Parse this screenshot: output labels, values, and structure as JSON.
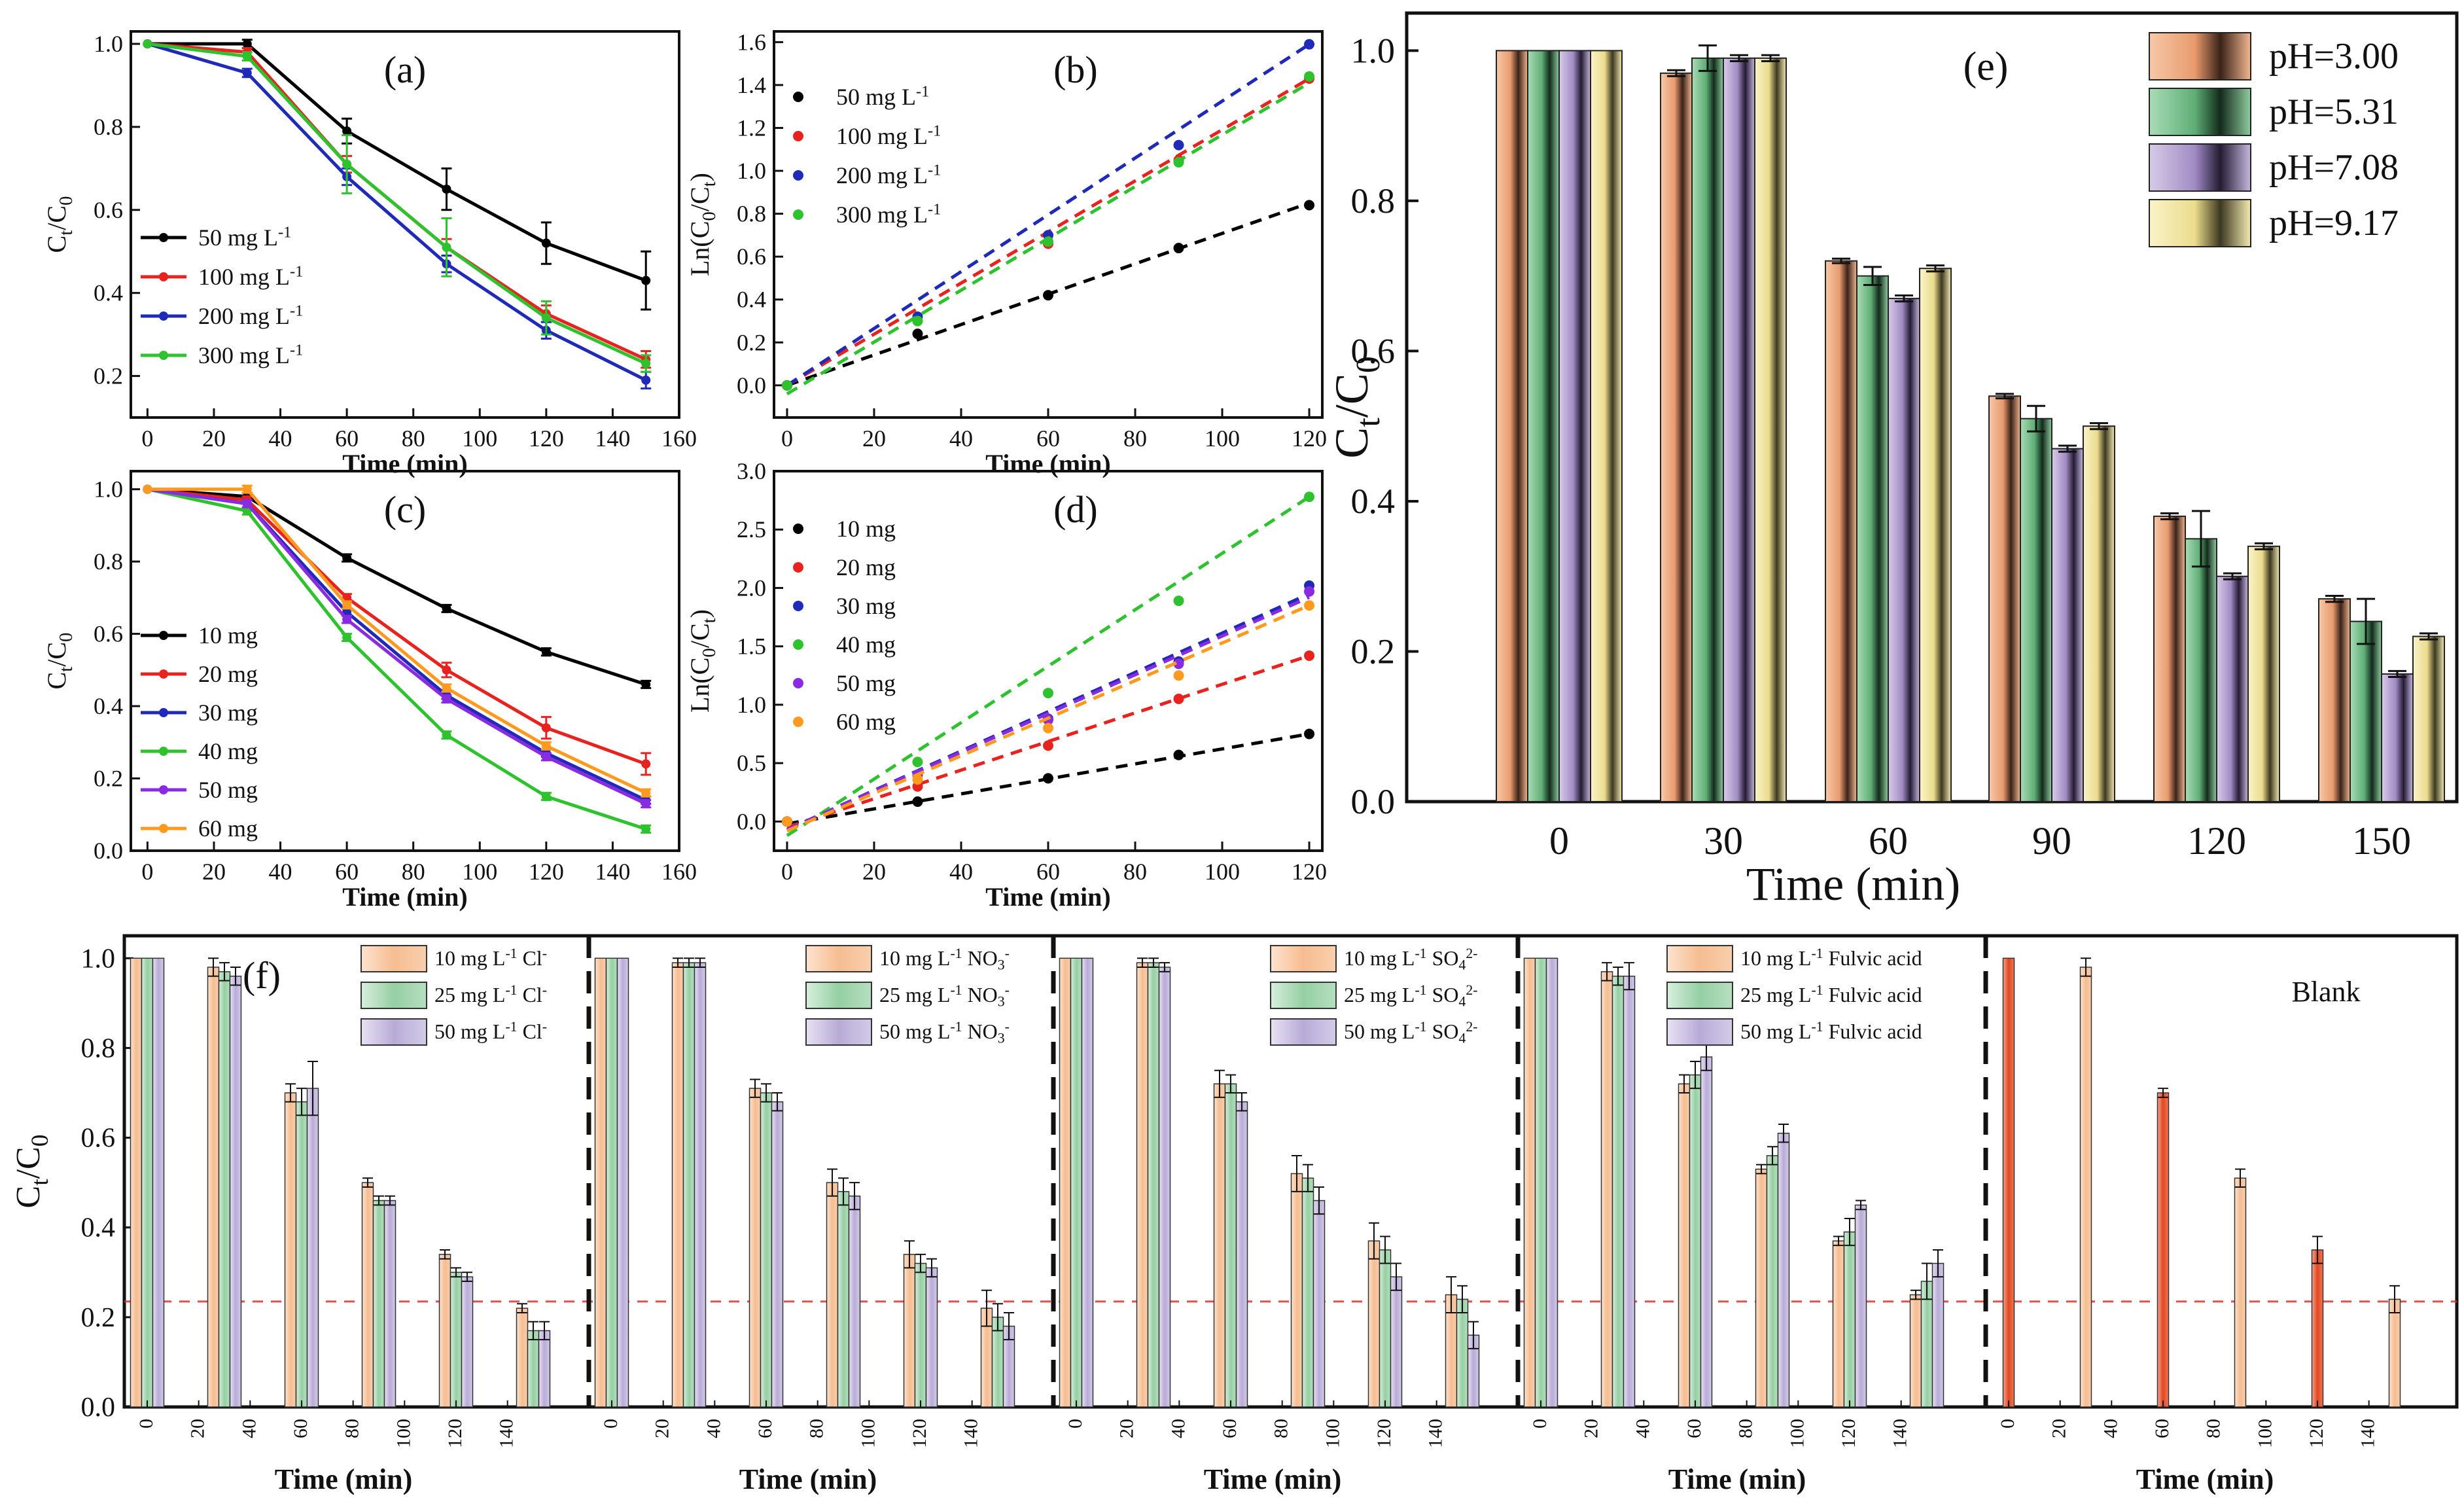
{
  "chart_data": {
    "a": {
      "type": "line",
      "label": "(a)",
      "xlabel": "Time (min)",
      "ylabel": "Ct/C0",
      "xlim": [
        -5,
        160
      ],
      "ylim": [
        0.1,
        1.03
      ],
      "xticks": [
        0,
        20,
        40,
        60,
        80,
        100,
        120,
        140,
        160
      ],
      "yticks": [
        0.2,
        0.4,
        0.6,
        0.8,
        1.0
      ],
      "legend_position": "bottom-left",
      "x": [
        0,
        30,
        60,
        90,
        120,
        150
      ],
      "series": [
        {
          "name": "50 mg L-1",
          "color": "#000000",
          "values": [
            1.0,
            1.0,
            0.79,
            0.65,
            0.52,
            0.43
          ],
          "err": [
            0,
            0.01,
            0.03,
            0.05,
            0.05,
            0.07
          ]
        },
        {
          "name": "100 mg L-1",
          "color": "#e8231f",
          "values": [
            1.0,
            0.98,
            0.71,
            0.51,
            0.35,
            0.24
          ],
          "err": [
            0,
            0.01,
            0.02,
            0.02,
            0.02,
            0.02
          ]
        },
        {
          "name": "200 mg L-1",
          "color": "#1f2ab8",
          "values": [
            1.0,
            0.93,
            0.68,
            0.47,
            0.31,
            0.19
          ],
          "err": [
            0,
            0.01,
            0.02,
            0.02,
            0.02,
            0.02
          ]
        },
        {
          "name": "300 mg L-1",
          "color": "#2ec22e",
          "values": [
            1.0,
            0.97,
            0.71,
            0.51,
            0.34,
            0.23
          ],
          "err": [
            0,
            0.01,
            0.07,
            0.07,
            0.04,
            0.02
          ]
        }
      ]
    },
    "b": {
      "type": "scatter",
      "label": "(b)",
      "xlabel": "Time (min)",
      "ylabel": "Ln(C0/Ct)",
      "xlim": [
        -3,
        123
      ],
      "ylim": [
        -0.15,
        1.65
      ],
      "xticks": [
        0,
        20,
        40,
        60,
        80,
        100,
        120
      ],
      "yticks": [
        0.0,
        0.2,
        0.4,
        0.6,
        0.8,
        1.0,
        1.2,
        1.4,
        1.6
      ],
      "legend_position": "top-left",
      "x": [
        0,
        30,
        60,
        90,
        120
      ],
      "series": [
        {
          "name": "50 mg L-1",
          "color": "#000000",
          "values": [
            0.0,
            0.24,
            0.42,
            0.64,
            0.84
          ],
          "fit": [
            0.0,
            0.85
          ]
        },
        {
          "name": "100 mg L-1",
          "color": "#e8231f",
          "values": [
            0.0,
            0.3,
            0.66,
            1.05,
            1.43
          ],
          "fit": [
            0.0,
            1.43
          ]
        },
        {
          "name": "200 mg L-1",
          "color": "#1f2ab8",
          "values": [
            0.0,
            0.32,
            0.7,
            1.12,
            1.59
          ],
          "fit": [
            0.0,
            1.59
          ]
        },
        {
          "name": "300 mg L-1",
          "color": "#2ec22e",
          "values": [
            0.0,
            0.3,
            0.67,
            1.04,
            1.44
          ],
          "fit": [
            -0.04,
            1.41
          ]
        }
      ]
    },
    "c": {
      "type": "line",
      "label": "(c)",
      "xlabel": "Time (min)",
      "ylabel": "Ct/C0",
      "xlim": [
        -5,
        160
      ],
      "ylim": [
        0.0,
        1.05
      ],
      "xticks": [
        0,
        20,
        40,
        60,
        80,
        100,
        120,
        140,
        160
      ],
      "yticks": [
        0.0,
        0.2,
        0.4,
        0.6,
        0.8,
        1.0
      ],
      "legend_position": "bottom-left",
      "x": [
        0,
        30,
        60,
        90,
        120,
        150
      ],
      "series": [
        {
          "name": "10 mg",
          "color": "#000000",
          "values": [
            1.0,
            0.98,
            0.81,
            0.67,
            0.55,
            0.46
          ],
          "err": [
            0,
            0.01,
            0.01,
            0.01,
            0.01,
            0.01
          ]
        },
        {
          "name": "20 mg",
          "color": "#e8231f",
          "values": [
            1.0,
            0.97,
            0.7,
            0.5,
            0.34,
            0.24
          ],
          "err": [
            0,
            0.01,
            0.01,
            0.02,
            0.03,
            0.03
          ]
        },
        {
          "name": "30 mg",
          "color": "#1f2ab8",
          "values": [
            1.0,
            0.96,
            0.66,
            0.43,
            0.27,
            0.14
          ],
          "err": [
            0,
            0.01,
            0.01,
            0.01,
            0.01,
            0.01
          ]
        },
        {
          "name": "40 mg",
          "color": "#2ec22e",
          "values": [
            1.0,
            0.94,
            0.59,
            0.32,
            0.15,
            0.06
          ],
          "err": [
            0,
            0.01,
            0.01,
            0.01,
            0.01,
            0.01
          ]
        },
        {
          "name": "50 mg",
          "color": "#8a2be2",
          "values": [
            1.0,
            0.96,
            0.64,
            0.42,
            0.26,
            0.13
          ],
          "err": [
            0,
            0.01,
            0.01,
            0.01,
            0.01,
            0.01
          ]
        },
        {
          "name": "60 mg",
          "color": "#ff9a1f",
          "values": [
            1.0,
            1.0,
            0.68,
            0.45,
            0.29,
            0.16
          ],
          "err": [
            0,
            0.01,
            0.01,
            0.01,
            0.01,
            0.01
          ]
        }
      ]
    },
    "d": {
      "type": "scatter",
      "label": "(d)",
      "xlabel": "Time (min)",
      "ylabel": "Ln(C0/Ct)",
      "xlim": [
        -3,
        123
      ],
      "ylim": [
        -0.25,
        3.0
      ],
      "xticks": [
        0,
        20,
        40,
        60,
        80,
        100,
        120
      ],
      "yticks": [
        0.0,
        0.5,
        1.0,
        1.5,
        2.0,
        2.5,
        3.0
      ],
      "legend_position": "top-left",
      "x": [
        0,
        30,
        60,
        90,
        120
      ],
      "series": [
        {
          "name": "10 mg",
          "color": "#000000",
          "values": [
            0.0,
            0.17,
            0.37,
            0.57,
            0.75
          ],
          "fit": [
            -0.02,
            0.75
          ]
        },
        {
          "name": "20 mg",
          "color": "#e8231f",
          "values": [
            0.0,
            0.3,
            0.65,
            1.05,
            1.42
          ],
          "fit": [
            -0.05,
            1.42
          ]
        },
        {
          "name": "30 mg",
          "color": "#1f2ab8",
          "values": [
            0.0,
            0.4,
            0.88,
            1.37,
            2.02
          ],
          "fit": [
            -0.07,
            1.95
          ]
        },
        {
          "name": "40 mg",
          "color": "#2ec22e",
          "values": [
            0.0,
            0.51,
            1.1,
            1.89,
            2.78
          ],
          "fit": [
            -0.12,
            2.78
          ]
        },
        {
          "name": "50 mg",
          "color": "#8a2be2",
          "values": [
            0.0,
            0.4,
            0.87,
            1.35,
            1.97
          ],
          "fit": [
            -0.07,
            1.92
          ]
        },
        {
          "name": "60 mg",
          "color": "#ff9a1f",
          "values": [
            0.0,
            0.36,
            0.8,
            1.25,
            1.85
          ],
          "fit": [
            -0.08,
            1.85
          ]
        }
      ]
    },
    "e": {
      "type": "bar",
      "label": "(e)",
      "xlabel": "Time (min)",
      "ylabel": "Ct/C0",
      "ylim": [
        0.0,
        1.05
      ],
      "yticks": [
        0.0,
        0.2,
        0.4,
        0.6,
        0.8,
        1.0
      ],
      "legend_position": "top-right",
      "categories": [
        "0",
        "30",
        "60",
        "90",
        "120",
        "150"
      ],
      "series": [
        {
          "name": "pH=3.00",
          "color": "#f2a97f",
          "values": [
            1.0,
            0.97,
            0.72,
            0.54,
            0.38,
            0.27
          ],
          "err": [
            0,
            0.004,
            0.003,
            0.003,
            0.004,
            0.004
          ]
        },
        {
          "name": "pH=5.31",
          "color": "#7cc48f",
          "values": [
            1.0,
            0.99,
            0.7,
            0.51,
            0.35,
            0.24
          ],
          "err": [
            0,
            0.017,
            0.012,
            0.017,
            0.037,
            0.03
          ]
        },
        {
          "name": "pH=7.08",
          "color": "#b9a3d6",
          "values": [
            1.0,
            0.99,
            0.67,
            0.47,
            0.3,
            0.17
          ],
          "err": [
            0,
            0.004,
            0.004,
            0.004,
            0.004,
            0.004
          ]
        },
        {
          "name": "pH=9.17",
          "color": "#f2e7a2",
          "values": [
            1.0,
            0.99,
            0.71,
            0.5,
            0.34,
            0.22
          ],
          "err": [
            0,
            0.004,
            0.004,
            0.004,
            0.004,
            0.004
          ]
        }
      ]
    },
    "f": {
      "type": "bar",
      "label": "(f)",
      "xlabel": "Time (min)",
      "ylabel": "Ct/C0",
      "ylim": [
        0.0,
        1.05
      ],
      "yticks": [
        0.0,
        0.2,
        0.4,
        0.6,
        0.8,
        1.0
      ],
      "reference_line": 0.235,
      "categories": [
        "0",
        "30",
        "60",
        "90",
        "120",
        "150"
      ],
      "xtick_labels": [
        "0",
        "20",
        "40",
        "60",
        "80",
        "100",
        "120",
        "140"
      ],
      "groups": [
        {
          "legend": [
            "10 mg L-1 Cl-",
            "25 mg L-1 Cl-",
            "50 mg L-1 Cl-"
          ],
          "series": [
            {
              "values": [
                1.0,
                0.98,
                0.7,
                0.5,
                0.34,
                0.22
              ],
              "err": [
                0,
                0.02,
                0.02,
                0.01,
                0.01,
                0.01
              ]
            },
            {
              "values": [
                1.0,
                0.97,
                0.68,
                0.46,
                0.3,
                0.17
              ],
              "err": [
                0,
                0.02,
                0.03,
                0.01,
                0.01,
                0.02
              ]
            },
            {
              "values": [
                1.0,
                0.96,
                0.71,
                0.46,
                0.29,
                0.17
              ],
              "err": [
                0,
                0.02,
                0.06,
                0.01,
                0.01,
                0.02
              ]
            }
          ]
        },
        {
          "legend": [
            "10 mg L-1 NO3-",
            "25 mg L-1 NO3-",
            "50 mg L-1 NO3-"
          ],
          "series": [
            {
              "values": [
                1.0,
                0.99,
                0.71,
                0.5,
                0.34,
                0.22
              ],
              "err": [
                0,
                0.01,
                0.02,
                0.03,
                0.03,
                0.04
              ]
            },
            {
              "values": [
                1.0,
                0.99,
                0.7,
                0.48,
                0.32,
                0.2
              ],
              "err": [
                0,
                0.01,
                0.02,
                0.03,
                0.02,
                0.03
              ]
            },
            {
              "values": [
                1.0,
                0.99,
                0.68,
                0.47,
                0.31,
                0.18
              ],
              "err": [
                0,
                0.01,
                0.02,
                0.03,
                0.02,
                0.03
              ]
            }
          ]
        },
        {
          "legend": [
            "10 mg L-1 SO42-",
            "25 mg L-1 SO42-",
            "50 mg L-1 SO42-"
          ],
          "series": [
            {
              "values": [
                1.0,
                0.99,
                0.72,
                0.52,
                0.37,
                0.25
              ],
              "err": [
                0,
                0.01,
                0.03,
                0.04,
                0.04,
                0.04
              ]
            },
            {
              "values": [
                1.0,
                0.99,
                0.72,
                0.51,
                0.35,
                0.24
              ],
              "err": [
                0,
                0.01,
                0.02,
                0.03,
                0.03,
                0.03
              ]
            },
            {
              "values": [
                1.0,
                0.98,
                0.68,
                0.46,
                0.29,
                0.16
              ],
              "err": [
                0,
                0.01,
                0.02,
                0.03,
                0.03,
                0.03
              ]
            }
          ]
        },
        {
          "legend": [
            "10 mg L-1 Fulvic acid",
            "25 mg L-1 Fulvic acid",
            "50 mg L-1 Fulvic acid"
          ],
          "series": [
            {
              "values": [
                1.0,
                0.97,
                0.72,
                0.53,
                0.37,
                0.25
              ],
              "err": [
                0,
                0.02,
                0.02,
                0.01,
                0.01,
                0.01
              ]
            },
            {
              "values": [
                1.0,
                0.96,
                0.74,
                0.56,
                0.39,
                0.28
              ],
              "err": [
                0,
                0.02,
                0.03,
                0.02,
                0.03,
                0.04
              ]
            },
            {
              "values": [
                1.0,
                0.96,
                0.78,
                0.61,
                0.45,
                0.32
              ],
              "err": [
                0,
                0.03,
                0.03,
                0.02,
                0.01,
                0.03
              ]
            }
          ]
        },
        {
          "legend": [
            "Blank"
          ],
          "series": [
            {
              "values": [
                1.0,
                0.98,
                0.7,
                0.51,
                0.35,
                0.24
              ],
              "err": [
                0,
                0.02,
                0.01,
                0.02,
                0.03,
                0.03
              ]
            }
          ]
        }
      ]
    }
  }
}
